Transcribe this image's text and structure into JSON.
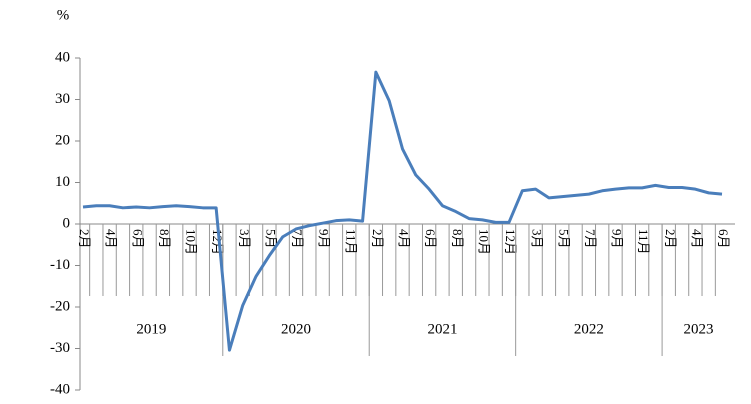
{
  "chart_data": {
    "type": "line",
    "ylabel": "%",
    "categories": [
      "2月",
      null,
      "4月",
      null,
      "6月",
      null,
      "8月",
      null,
      "10月",
      null,
      "12月",
      null,
      "3月",
      null,
      "5月",
      null,
      "7月",
      null,
      "9月",
      null,
      "11月",
      null,
      "2月",
      null,
      "4月",
      null,
      "6月",
      null,
      "8月",
      null,
      "10月",
      null,
      "12月",
      null,
      "3月",
      null,
      "5月",
      null,
      "7月",
      null,
      "9月",
      null,
      "11月",
      null,
      "2月",
      null,
      "4月",
      null,
      "6月"
    ],
    "groups": [
      {
        "label": "2019",
        "count": 11
      },
      {
        "label": "2020",
        "count": 11
      },
      {
        "label": "2021",
        "count": 11
      },
      {
        "label": "2022",
        "count": 11
      },
      {
        "label": "2023",
        "count": 5
      }
    ],
    "series": [
      {
        "name": "value",
        "color": "#4a7ebb",
        "values": [
          4.1,
          4.4,
          4.4,
          3.9,
          4.1,
          3.9,
          4.2,
          4.4,
          4.2,
          3.9,
          3.9,
          -30.4,
          -19.6,
          -12.6,
          -7.6,
          -3.1,
          -1.2,
          -0.4,
          0.2,
          0.8,
          1.0,
          0.7,
          36.6,
          29.7,
          18.1,
          11.8,
          8.4,
          4.4,
          3.0,
          1.3,
          1.0,
          0.4,
          0.4,
          8.0,
          8.4,
          6.3,
          6.6,
          6.9,
          7.2,
          8.0,
          8.4,
          8.7,
          8.7,
          9.3,
          8.8,
          8.8,
          8.4,
          7.5,
          7.2
        ]
      }
    ],
    "ylim": [
      -40,
      40
    ],
    "yticks": [
      -40,
      -30,
      -20,
      -10,
      0,
      10,
      20,
      30,
      40
    ]
  }
}
